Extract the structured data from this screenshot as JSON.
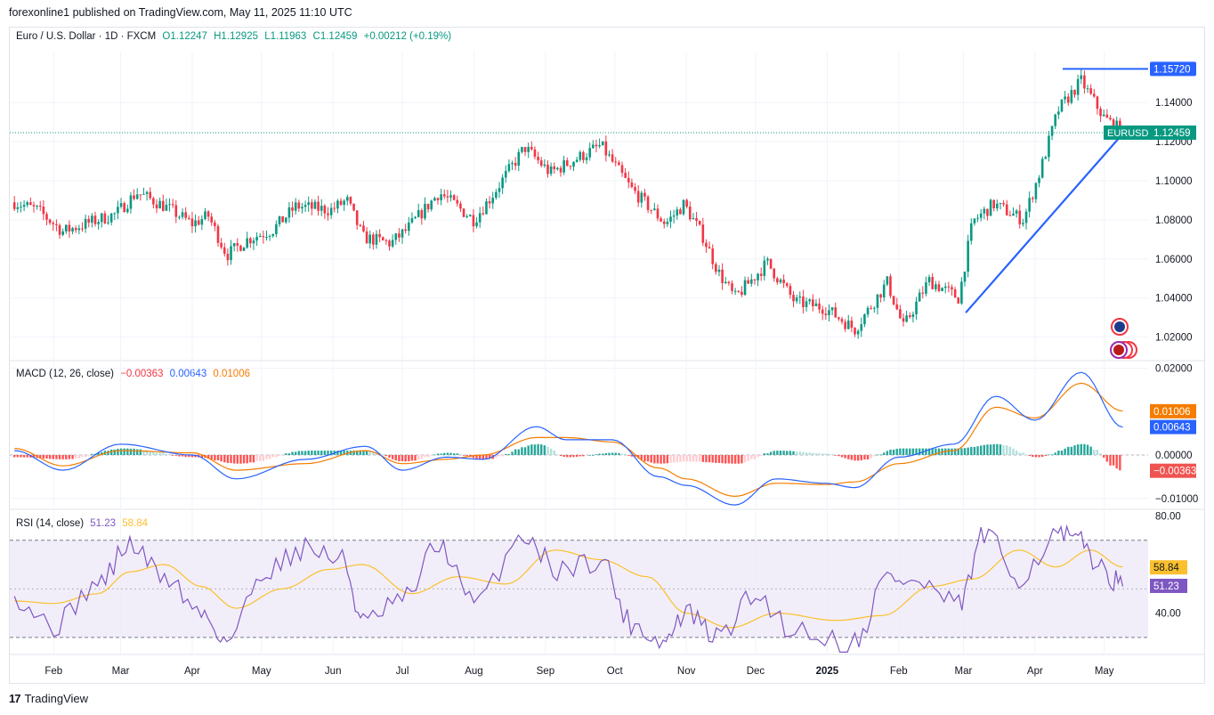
{
  "header": {
    "published": "forexonline1 published on TradingView.com, May 11, 2025 11:10 UTC"
  },
  "legend": {
    "symbol": "Euro / U.S. Dollar · 1D · FXCM",
    "open": "O1.12247",
    "high": "H1.12925",
    "low": "L1.11963",
    "close": "C1.12459",
    "change": "+0.00212 (+0.19%)"
  },
  "macd_legend": {
    "label": "MACD (12, 26, close)",
    "hist": "−0.00363",
    "macd": "0.00643",
    "signal": "0.01006"
  },
  "rsi_legend": {
    "label": "RSI (14, close)",
    "rsi": "51.23",
    "ma": "58.84"
  },
  "footer": {
    "brand": "TradingView"
  },
  "colors": {
    "up": "#089981",
    "down": "#f23645",
    "macd": "#2962ff",
    "signal": "#f57c00",
    "rsi": "#7e57c2",
    "rsi_ma": "#fbc02d",
    "trendline": "#2962ff",
    "rsi_band": "#ede7f6"
  },
  "chart_data": [
    {
      "type": "candlestick",
      "title": "Euro / U.S. Dollar · 1D · FXCM",
      "y_ticks": [
        "1.02000",
        "1.04000",
        "1.06000",
        "1.08000",
        "1.10000",
        "1.12000",
        "1.14000"
      ],
      "ylim": [
        1.008,
        1.166
      ],
      "x_ticks": [
        "Feb",
        "Mar",
        "Apr",
        "May",
        "Jun",
        "Jul",
        "Aug",
        "Sep",
        "Oct",
        "Nov",
        "Dec",
        "2025",
        "Feb",
        "Mar",
        "Apr",
        "May"
      ],
      "price_labels": {
        "resistance": "1.15720",
        "last_symbol": "EURUSD",
        "last": "1.12459"
      },
      "resistance_level": 1.1572,
      "last_price": 1.12459,
      "trendline": {
        "from": [
          "2025-03-02",
          1.0325
        ],
        "to": [
          "2025-05-09",
          1.124
        ]
      },
      "close_path": [
        [
          "2024-01-15",
          1.089
        ],
        [
          "2024-01-25",
          1.085
        ],
        [
          "2024-02-05",
          1.074
        ],
        [
          "2024-02-15",
          1.078
        ],
        [
          "2024-02-28",
          1.083
        ],
        [
          "2024-03-08",
          1.094
        ],
        [
          "2024-03-20",
          1.087
        ],
        [
          "2024-04-01",
          1.078
        ],
        [
          "2024-04-08",
          1.082
        ],
        [
          "2024-04-16",
          1.062
        ],
        [
          "2024-04-25",
          1.07
        ],
        [
          "2024-05-06",
          1.075
        ],
        [
          "2024-05-16",
          1.087
        ],
        [
          "2024-05-31",
          1.085
        ],
        [
          "2024-06-07",
          1.09
        ],
        [
          "2024-06-14",
          1.071
        ],
        [
          "2024-06-26",
          1.068
        ],
        [
          "2024-07-03",
          1.075
        ],
        [
          "2024-07-17",
          1.094
        ],
        [
          "2024-08-01",
          1.08
        ],
        [
          "2024-08-08",
          1.091
        ],
        [
          "2024-08-23",
          1.117
        ],
        [
          "2024-09-03",
          1.104
        ],
        [
          "2024-09-25",
          1.118
        ],
        [
          "2024-10-08",
          1.096
        ],
        [
          "2024-10-23",
          1.078
        ],
        [
          "2024-10-31",
          1.088
        ],
        [
          "2024-11-08",
          1.072
        ],
        [
          "2024-11-15",
          1.053
        ],
        [
          "2024-11-22",
          1.04
        ],
        [
          "2024-12-06",
          1.058
        ],
        [
          "2024-12-18",
          1.038
        ],
        [
          "2024-12-31",
          1.035
        ],
        [
          "2025-01-13",
          1.024
        ],
        [
          "2025-01-27",
          1.048
        ],
        [
          "2025-02-03",
          1.025
        ],
        [
          "2025-02-14",
          1.049
        ],
        [
          "2025-02-27",
          1.04
        ],
        [
          "2025-03-05",
          1.079
        ],
        [
          "2025-03-14",
          1.088
        ],
        [
          "2025-03-27",
          1.08
        ],
        [
          "2025-04-03",
          1.104
        ],
        [
          "2025-04-11",
          1.136
        ],
        [
          "2025-04-21",
          1.151
        ],
        [
          "2025-05-01",
          1.132
        ],
        [
          "2025-05-09",
          1.125
        ]
      ]
    },
    {
      "type": "line",
      "title": "MACD (12, 26, close)",
      "y_ticks": [
        "0.02000",
        "0.00000",
        "−0.01000"
      ],
      "ylim": [
        -0.0125,
        0.0215
      ],
      "price_labels": {
        "signal": "0.01006",
        "macd": "0.00643",
        "hist": "−0.00363"
      },
      "series": [
        {
          "name": "MACD",
          "x": [
            "2024-01-15",
            "2024-02-05",
            "2024-03-01",
            "2024-04-01",
            "2024-04-20",
            "2024-05-20",
            "2024-06-15",
            "2024-07-01",
            "2024-07-20",
            "2024-08-05",
            "2024-08-28",
            "2024-09-10",
            "2024-09-30",
            "2024-10-20",
            "2024-11-01",
            "2024-11-22",
            "2024-12-10",
            "2024-12-31",
            "2025-01-13",
            "2025-02-01",
            "2025-02-25",
            "2025-03-15",
            "2025-04-01",
            "2025-04-21",
            "2025-05-09"
          ],
          "values": [
            0.001,
            -0.0035,
            0.0025,
            0.0,
            -0.0055,
            -0.001,
            0.002,
            -0.0035,
            -0.0005,
            -0.001,
            0.0065,
            0.0035,
            0.0035,
            -0.005,
            -0.007,
            -0.0115,
            -0.0055,
            -0.0065,
            -0.0075,
            -0.0005,
            0.0025,
            0.0135,
            0.008,
            0.019,
            0.0064
          ]
        },
        {
          "name": "Signal",
          "x": [
            "2024-01-15",
            "2024-02-05",
            "2024-03-01",
            "2024-04-01",
            "2024-04-20",
            "2024-05-20",
            "2024-06-15",
            "2024-07-01",
            "2024-07-20",
            "2024-08-05",
            "2024-08-28",
            "2024-09-10",
            "2024-09-30",
            "2024-10-20",
            "2024-11-01",
            "2024-11-22",
            "2024-12-10",
            "2024-12-31",
            "2025-01-13",
            "2025-02-01",
            "2025-02-25",
            "2025-03-15",
            "2025-04-01",
            "2025-04-21",
            "2025-05-09"
          ],
          "values": [
            0.0015,
            -0.0025,
            0.001,
            0.0005,
            -0.0035,
            -0.002,
            0.001,
            -0.002,
            -0.001,
            0.0,
            0.004,
            0.004,
            0.003,
            -0.003,
            -0.0055,
            -0.0095,
            -0.0065,
            -0.0068,
            -0.0062,
            -0.002,
            0.001,
            0.011,
            0.0085,
            0.0165,
            0.0101
          ]
        }
      ]
    },
    {
      "type": "line",
      "title": "RSI (14, close)",
      "y_ticks": [
        "80.00",
        "40.00"
      ],
      "ylim": [
        23,
        82
      ],
      "bands": [
        70,
        30
      ],
      "midline": 50,
      "price_labels": {
        "ma": "58.84",
        "rsi": "51.23"
      },
      "series": [
        {
          "name": "RSI",
          "x": [
            "2024-01-15",
            "2024-02-01",
            "2024-02-20",
            "2024-03-05",
            "2024-03-20",
            "2024-04-05",
            "2024-04-16",
            "2024-05-03",
            "2024-05-20",
            "2024-06-05",
            "2024-06-14",
            "2024-07-01",
            "2024-07-17",
            "2024-08-01",
            "2024-08-23",
            "2024-09-06",
            "2024-09-25",
            "2024-10-08",
            "2024-10-22",
            "2024-11-01",
            "2024-11-14",
            "2024-12-01",
            "2024-12-18",
            "2025-01-13",
            "2025-01-27",
            "2025-02-10",
            "2025-02-27",
            "2025-03-10",
            "2025-03-25",
            "2025-04-11",
            "2025-04-21",
            "2025-05-01",
            "2025-05-09"
          ],
          "values": [
            47,
            35,
            52,
            68,
            55,
            40,
            29,
            58,
            67,
            62,
            36,
            45,
            68,
            44,
            72,
            58,
            62,
            36,
            28,
            40,
            30,
            47,
            33,
            28,
            55,
            52,
            43,
            72,
            55,
            72,
            69,
            57,
            51
          ]
        },
        {
          "name": "RSI MA",
          "x": [
            "2024-01-15",
            "2024-02-01",
            "2024-02-20",
            "2024-03-05",
            "2024-03-20",
            "2024-04-05",
            "2024-04-20",
            "2024-05-10",
            "2024-05-30",
            "2024-06-14",
            "2024-07-05",
            "2024-07-25",
            "2024-08-15",
            "2024-09-05",
            "2024-09-25",
            "2024-10-15",
            "2024-11-01",
            "2024-11-20",
            "2024-12-10",
            "2025-01-05",
            "2025-01-25",
            "2025-02-15",
            "2025-03-05",
            "2025-03-25",
            "2025-04-10",
            "2025-04-25",
            "2025-05-09"
          ],
          "values": [
            45,
            44,
            48,
            57,
            60,
            51,
            42,
            50,
            58,
            60,
            48,
            55,
            52,
            66,
            62,
            55,
            40,
            34,
            40,
            37,
            39,
            51,
            54,
            66,
            59,
            66,
            59
          ]
        }
      ]
    }
  ]
}
